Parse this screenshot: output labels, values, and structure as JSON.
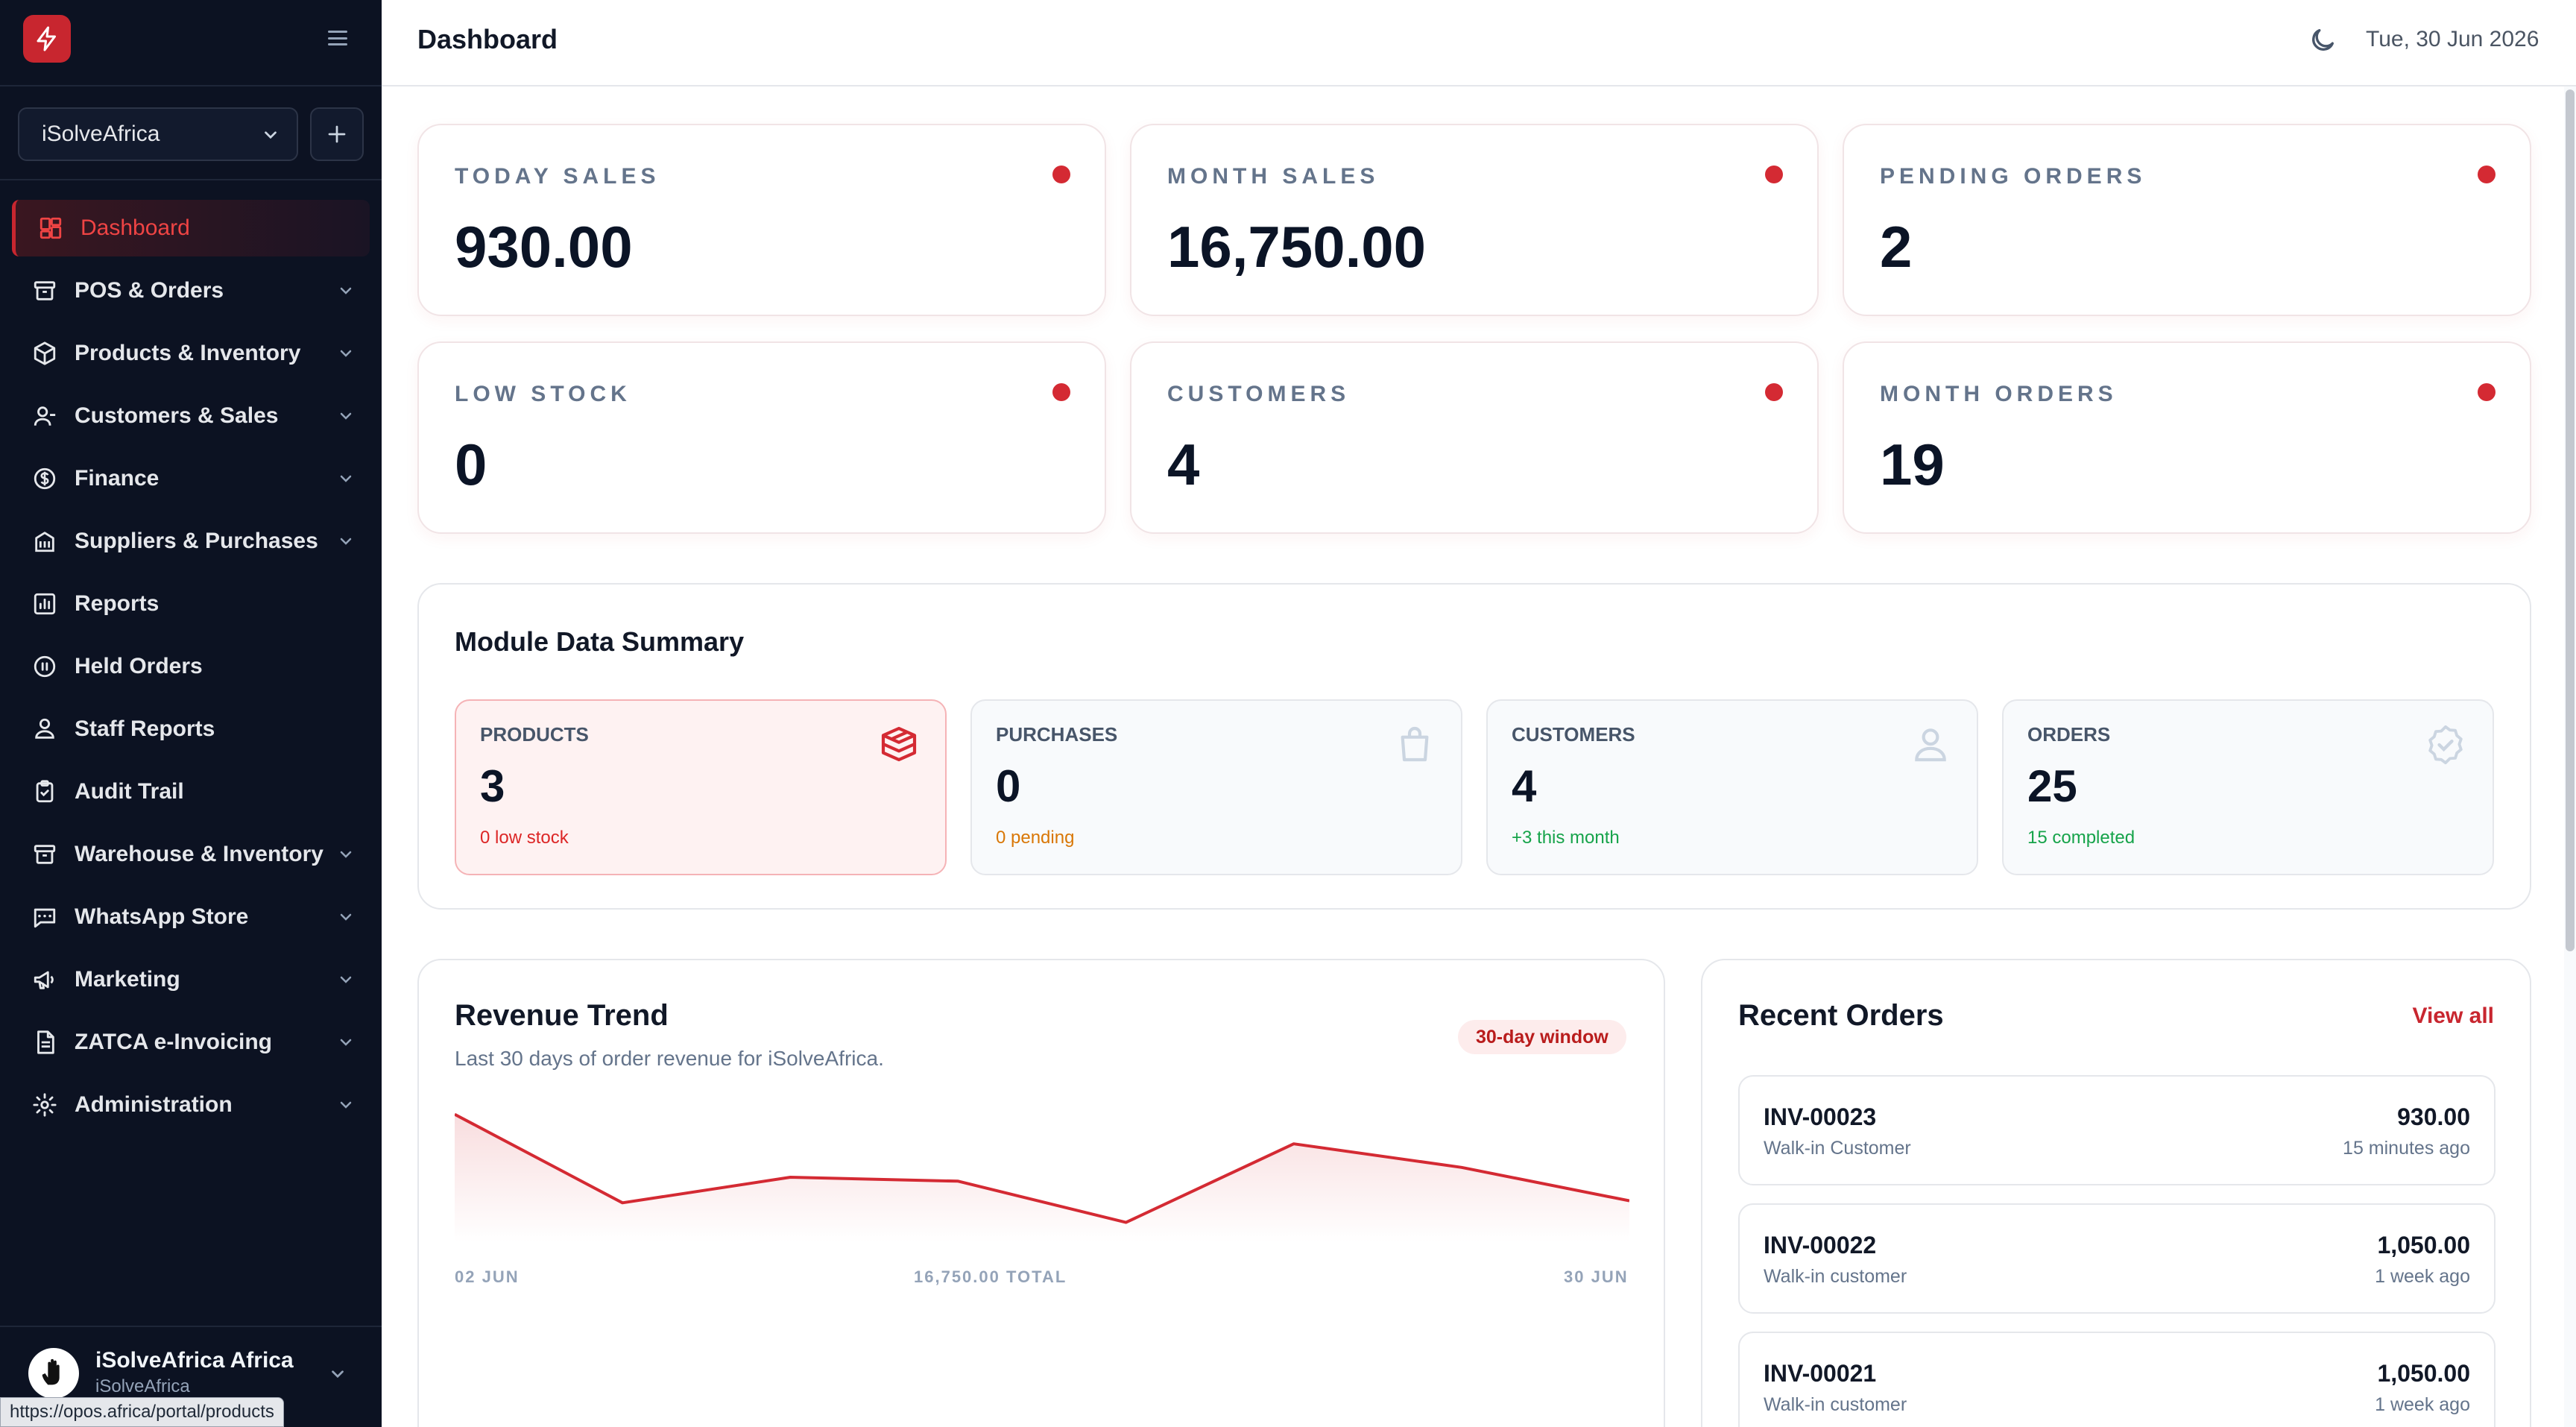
{
  "sidebar": {
    "store": "iSolveAfrica",
    "items": [
      {
        "label": "Dashboard"
      },
      {
        "label": "POS & Orders"
      },
      {
        "label": "Products & Inventory"
      },
      {
        "label": "Customers & Sales"
      },
      {
        "label": "Finance"
      },
      {
        "label": "Suppliers & Purchases"
      },
      {
        "label": "Reports"
      },
      {
        "label": "Held Orders"
      },
      {
        "label": "Staff Reports"
      },
      {
        "label": "Audit Trail"
      },
      {
        "label": "Warehouse & Inventory"
      },
      {
        "label": "WhatsApp Store"
      },
      {
        "label": "Marketing"
      },
      {
        "label": "ZATCA e-Invoicing"
      },
      {
        "label": "Administration"
      }
    ],
    "user": {
      "name": "iSolveAfrica Africa",
      "org": "iSolveAfrica"
    },
    "status_url": "https://opos.africa/portal/products"
  },
  "header": {
    "title": "Dashboard",
    "date": "Tue, 30 Jun 2026"
  },
  "stats": [
    {
      "label": "TODAY SALES",
      "value": "930.00"
    },
    {
      "label": "MONTH SALES",
      "value": "16,750.00"
    },
    {
      "label": "PENDING ORDERS",
      "value": "2"
    },
    {
      "label": "LOW STOCK",
      "value": "0"
    },
    {
      "label": "CUSTOMERS",
      "value": "4"
    },
    {
      "label": "MONTH ORDERS",
      "value": "19"
    }
  ],
  "module_summary": {
    "title": "Module Data Summary",
    "tiles": [
      {
        "label": "PRODUCTS",
        "value": "3",
        "sub": "0 low stock",
        "sub_color": "#dc2626",
        "icon": "package-icon"
      },
      {
        "label": "PURCHASES",
        "value": "0",
        "sub": "0 pending",
        "sub_color": "#d97706",
        "icon": "shopping-bag-icon"
      },
      {
        "label": "CUSTOMERS",
        "value": "4",
        "sub": "+3 this month",
        "sub_color": "#16a34a",
        "icon": "user-icon"
      },
      {
        "label": "ORDERS",
        "value": "25",
        "sub": "15 completed",
        "sub_color": "#16a34a",
        "icon": "badge-check-icon"
      }
    ]
  },
  "revenue": {
    "title": "Revenue Trend",
    "subtitle": "Last 30 days of order revenue for iSolveAfrica.",
    "badge": "30-day window",
    "x_start": "02 JUN",
    "x_mid": "16,750.00 TOTAL",
    "x_end": "30 JUN"
  },
  "chart_data": {
    "type": "area",
    "x": [
      "02 JUN",
      "",
      "",
      "",
      "",
      "",
      "",
      "30 JUN"
    ],
    "values": [
      3250,
      1000,
      1650,
      1550,
      500,
      2500,
      1900,
      1050
    ],
    "color": "#d42a33",
    "grid": false
  },
  "recent_orders": {
    "title": "Recent Orders",
    "view_all": "View all",
    "orders": [
      {
        "id": "INV-00023",
        "customer": "Walk-in Customer",
        "amount": "930.00",
        "time": "15 minutes ago"
      },
      {
        "id": "INV-00022",
        "customer": "Walk-in customer",
        "amount": "1,050.00",
        "time": "1 week ago"
      },
      {
        "id": "INV-00021",
        "customer": "Walk-in customer",
        "amount": "1,050.00",
        "time": "1 week ago"
      }
    ]
  },
  "colors": {
    "accent": "#c8262f",
    "sidebar_bg": "#0c1222"
  }
}
